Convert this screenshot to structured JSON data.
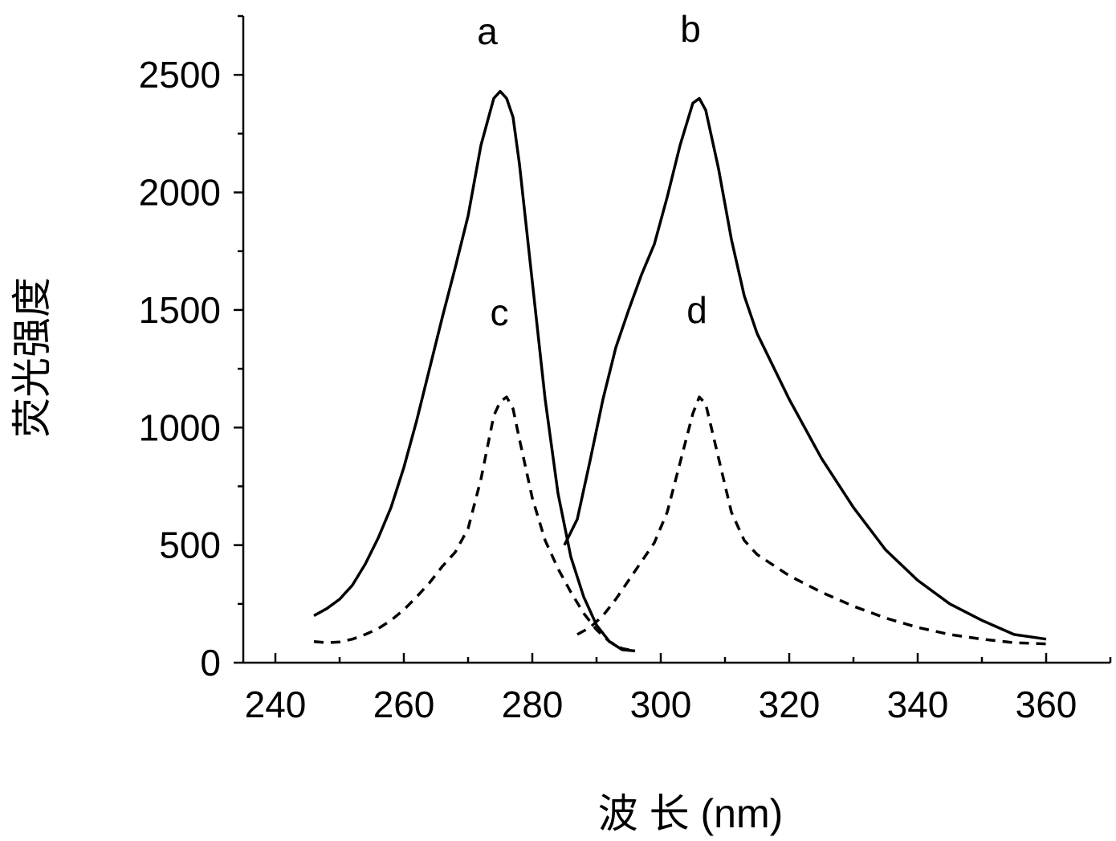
{
  "chart_data": {
    "type": "line",
    "title": "",
    "xlabel": "波 长 (nm)",
    "ylabel": "荧光强度",
    "xlim": [
      235,
      370
    ],
    "ylim": [
      0,
      2750
    ],
    "xticks": [
      240,
      260,
      280,
      300,
      320,
      340,
      360
    ],
    "yticks": [
      0,
      500,
      1000,
      1500,
      2000,
      2500
    ],
    "grid": false,
    "legend": "none",
    "series": [
      {
        "name": "a",
        "style": "solid",
        "x": [
          246,
          248,
          250,
          252,
          254,
          256,
          258,
          260,
          262,
          264,
          266,
          268,
          270,
          272,
          274,
          275,
          276,
          277,
          278,
          280,
          282,
          284,
          286,
          288,
          290,
          292,
          294,
          296
        ],
        "y": [
          200,
          230,
          270,
          330,
          420,
          530,
          660,
          830,
          1030,
          1250,
          1470,
          1680,
          1900,
          2200,
          2400,
          2430,
          2400,
          2320,
          2120,
          1620,
          1120,
          720,
          450,
          280,
          160,
          90,
          55,
          50
        ]
      },
      {
        "name": "b",
        "style": "solid",
        "x": [
          285,
          287,
          289,
          291,
          293,
          295,
          297,
          299,
          301,
          303,
          305,
          306,
          307,
          309,
          311,
          313,
          315,
          320,
          325,
          330,
          335,
          340,
          345,
          350,
          355,
          360
        ],
        "y": [
          500,
          610,
          860,
          1120,
          1340,
          1500,
          1650,
          1780,
          1980,
          2200,
          2380,
          2400,
          2350,
          2100,
          1800,
          1560,
          1400,
          1120,
          870,
          660,
          480,
          350,
          250,
          180,
          120,
          100
        ]
      },
      {
        "name": "c",
        "style": "dashed",
        "x": [
          246,
          248,
          250,
          252,
          254,
          256,
          258,
          260,
          262,
          264,
          266,
          268,
          270,
          272,
          274,
          275,
          276,
          277,
          278,
          280,
          282,
          284,
          286,
          288,
          290,
          292,
          294,
          296
        ],
        "y": [
          90,
          85,
          88,
          100,
          120,
          145,
          180,
          225,
          280,
          340,
          410,
          470,
          570,
          780,
          1050,
          1110,
          1130,
          1080,
          950,
          700,
          520,
          400,
          300,
          210,
          140,
          90,
          60,
          50
        ]
      },
      {
        "name": "d",
        "style": "dashed",
        "x": [
          287,
          289,
          291,
          293,
          295,
          297,
          299,
          301,
          303,
          305,
          306,
          307,
          309,
          311,
          313,
          315,
          320,
          325,
          330,
          335,
          340,
          345,
          350,
          355,
          360
        ],
        "y": [
          120,
          150,
          200,
          270,
          350,
          430,
          510,
          640,
          850,
          1060,
          1130,
          1100,
          870,
          640,
          520,
          460,
          370,
          300,
          240,
          190,
          150,
          120,
          100,
          85,
          80
        ]
      }
    ]
  }
}
